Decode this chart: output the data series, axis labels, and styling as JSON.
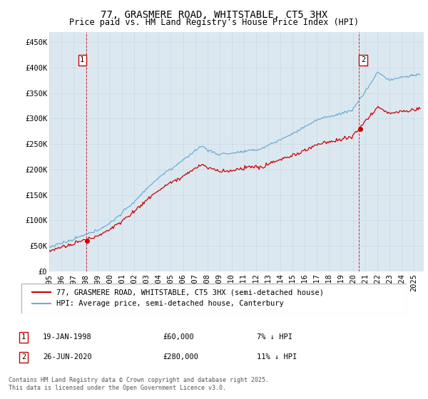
{
  "title": "77, GRASMERE ROAD, WHITSTABLE, CT5 3HX",
  "subtitle": "Price paid vs. HM Land Registry's House Price Index (HPI)",
  "legend_line1": "77, GRASMERE ROAD, WHITSTABLE, CT5 3HX (semi-detached house)",
  "legend_line2": "HPI: Average price, semi-detached house, Canterbury",
  "annotation1_label": "1",
  "annotation1_date": "19-JAN-1998",
  "annotation1_price": "£60,000",
  "annotation1_hpi": "7% ↓ HPI",
  "annotation1_year": 1998.05,
  "annotation1_value": 60000,
  "annotation2_label": "2",
  "annotation2_date": "26-JUN-2020",
  "annotation2_price": "£280,000",
  "annotation2_hpi": "11% ↓ HPI",
  "annotation2_year": 2020.49,
  "annotation2_value": 280000,
  "ylabel_ticks": [
    "£0",
    "£50K",
    "£100K",
    "£150K",
    "£200K",
    "£250K",
    "£300K",
    "£350K",
    "£400K",
    "£450K"
  ],
  "ytick_values": [
    0,
    50000,
    100000,
    150000,
    200000,
    250000,
    300000,
    350000,
    400000,
    450000
  ],
  "ylim": [
    0,
    470000
  ],
  "xlim_start": 1995.0,
  "xlim_end": 2025.8,
  "hpi_color": "#6baed6",
  "price_color": "#cc0000",
  "dashed_color": "#cc0000",
  "grid_color": "#c8d8e8",
  "bg_color": "#dce8f0",
  "background_color": "#ffffff",
  "footer": "Contains HM Land Registry data © Crown copyright and database right 2025.\nThis data is licensed under the Open Government Licence v3.0.",
  "title_fontsize": 10,
  "subtitle_fontsize": 8.5,
  "axis_fontsize": 7.5,
  "legend_fontsize": 7.5,
  "footer_fontsize": 6.0
}
